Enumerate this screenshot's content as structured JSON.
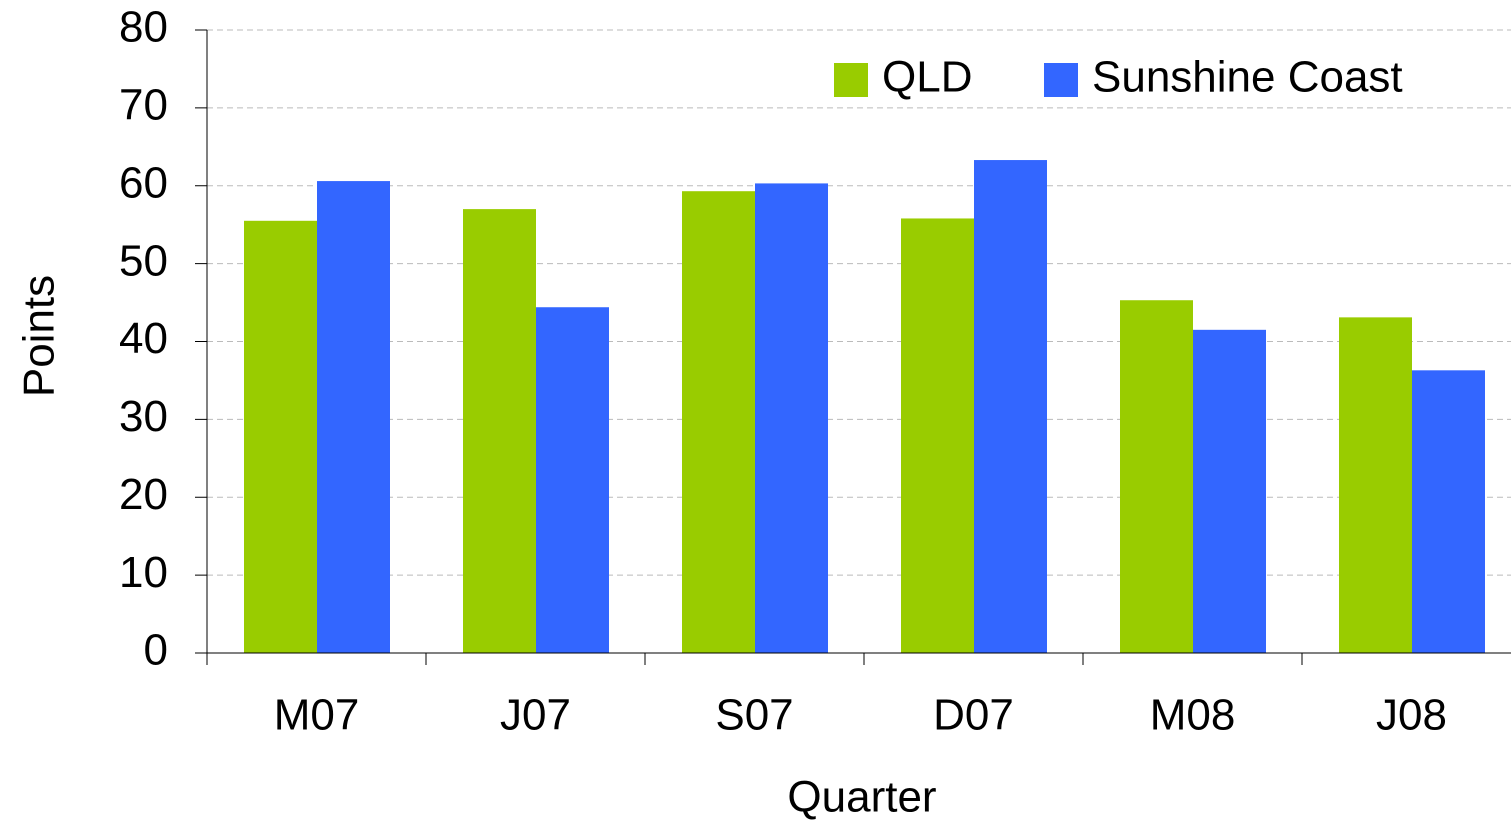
{
  "chart_data": {
    "type": "bar",
    "categories": [
      "M07",
      "J07",
      "S07",
      "D07",
      "M08",
      "J08"
    ],
    "series": [
      {
        "name": "QLD",
        "color": "#99cc00",
        "values": [
          55.5,
          57.0,
          59.3,
          55.8,
          45.3,
          43.1
        ]
      },
      {
        "name": "Sunshine Coast",
        "color": "#3366ff",
        "values": [
          60.6,
          44.4,
          60.3,
          63.3,
          41.5,
          36.3
        ]
      }
    ],
    "x_label": "Quarter",
    "y_label": "Points",
    "ylim": [
      0,
      80
    ],
    "yticks": [
      0,
      10,
      20,
      30,
      40,
      50,
      60,
      70,
      80
    ],
    "grid": true,
    "legend": "top-right"
  }
}
